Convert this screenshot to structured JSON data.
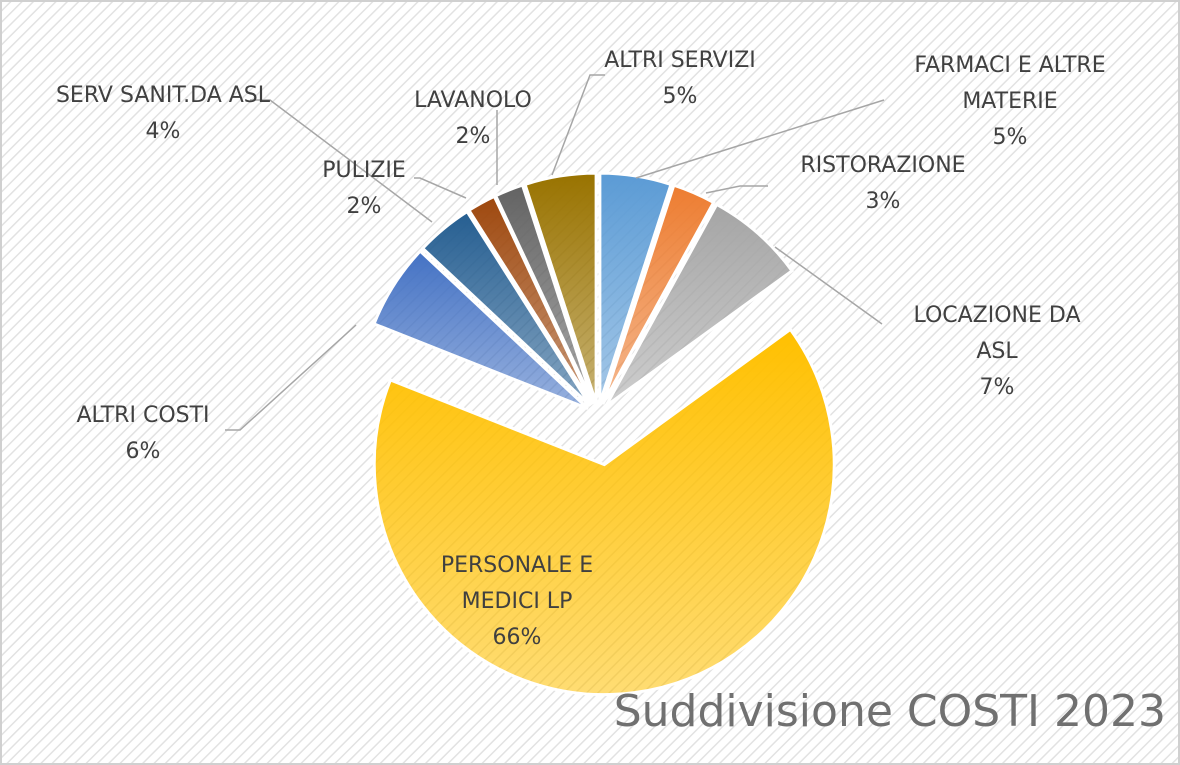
{
  "chart_data": {
    "type": "pie",
    "title": "Suddivisione COSTI 2023",
    "categories": [
      "FARMACI E ALTRE MATERIE",
      "RISTORAZIONE",
      "LOCAZIONE DA ASL",
      "PERSONALE E MEDICI LP",
      "ALTRI COSTI",
      "SERV SANIT.DA ASL",
      "PULIZIE",
      "LAVANOLO",
      "ALTRI SERVIZI"
    ],
    "values": [
      5,
      3,
      7,
      66,
      6,
      4,
      2,
      2,
      5
    ],
    "value_labels": [
      "5%",
      "3%",
      "7%",
      "66%",
      "6%",
      "4%",
      "2%",
      "2%",
      "5%"
    ],
    "colors": [
      "#5b9bd5",
      "#ed7d31",
      "#a5a5a5",
      "#ffc000",
      "#4472c4",
      "#255e91",
      "#9e480e",
      "#636363",
      "#997300"
    ]
  }
}
